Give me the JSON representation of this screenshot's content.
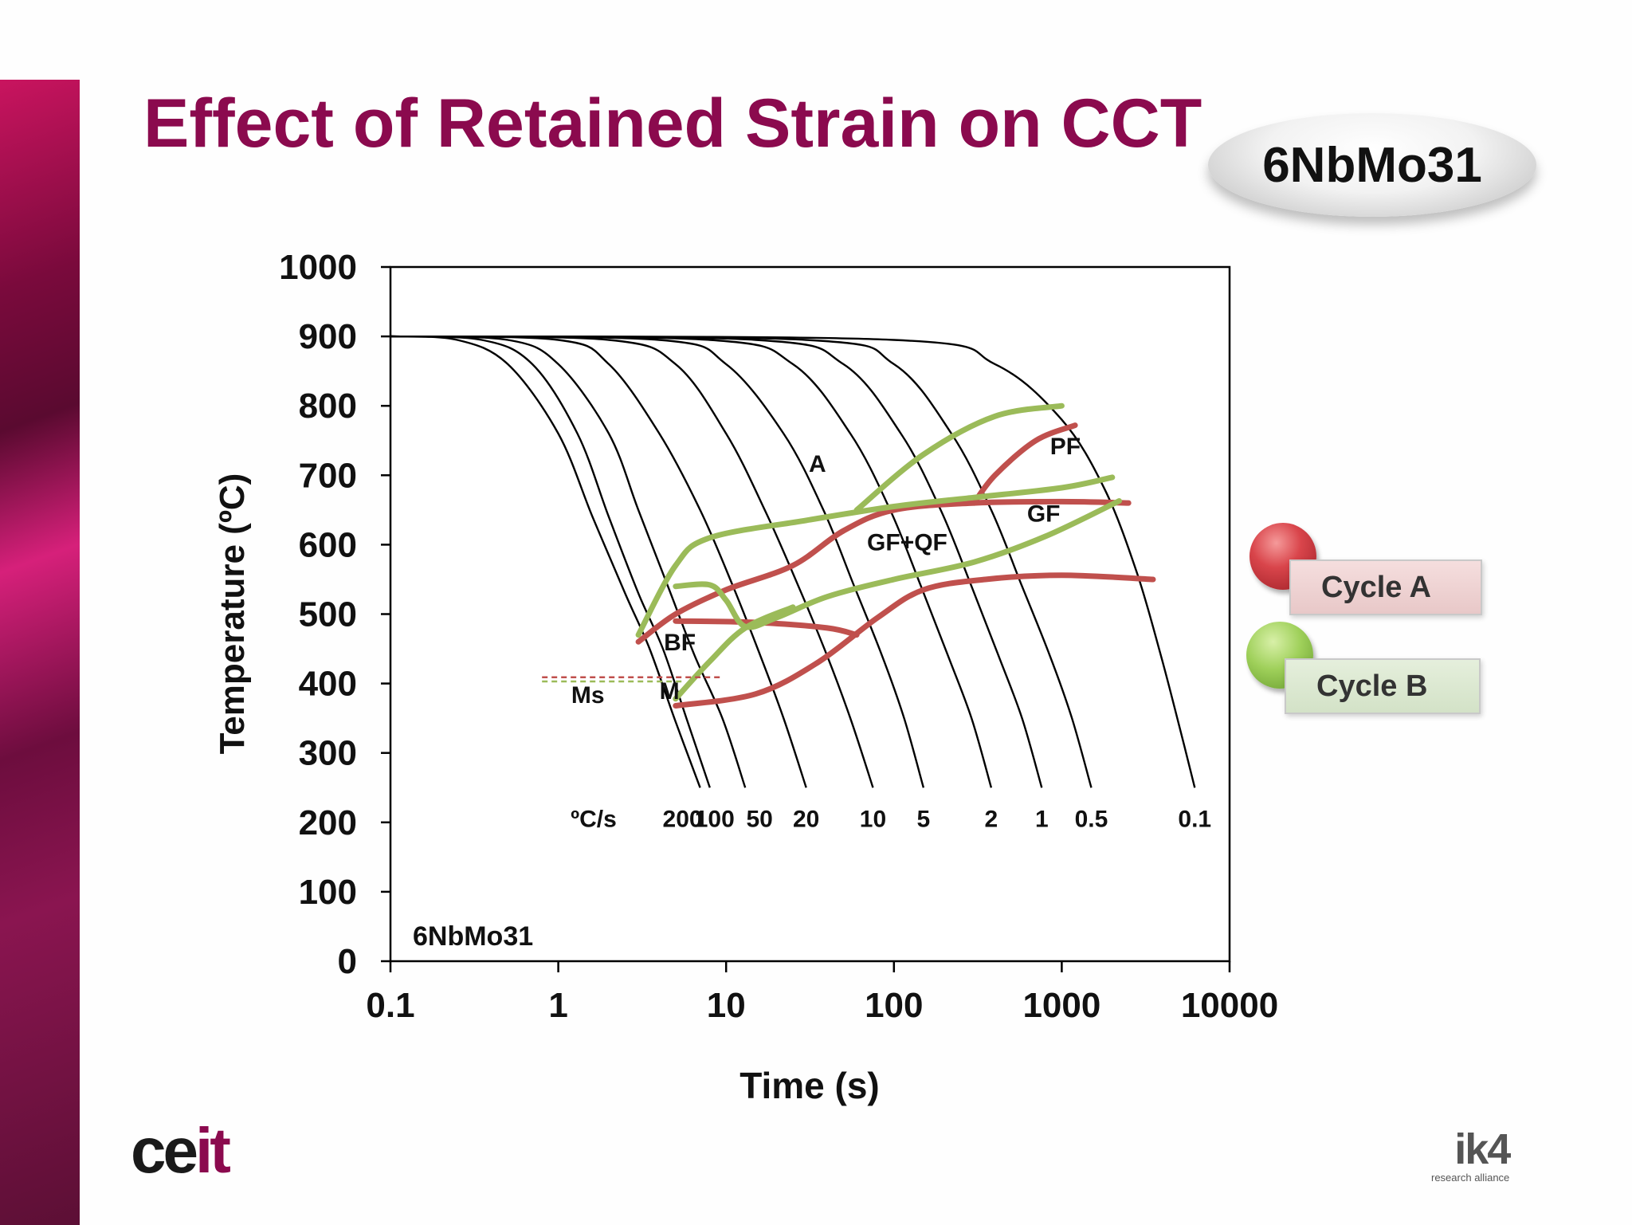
{
  "slide": {
    "title": "Effect of Retained Strain on CCT",
    "badge": "6NbMo31"
  },
  "colors": {
    "title": "#8b0a4e",
    "cycle_a": "#c0504d",
    "cycle_b": "#9bbb59",
    "cooling_curves": "#000000"
  },
  "legend": {
    "cycle_a": "Cycle A",
    "cycle_b": "Cycle B"
  },
  "logos": {
    "left_a": "ce",
    "left_b": "it",
    "right_main": "ik4",
    "right_sub": "research alliance"
  },
  "chart_data": {
    "type": "line",
    "xlabel": "Time (s)",
    "ylabel": "Temperature (ºC)",
    "x_scale": "log",
    "xlim": [
      0.1,
      10000
    ],
    "ylim": [
      0,
      1000
    ],
    "x_ticks": [
      "0.1",
      "1",
      "10",
      "100",
      "1000",
      "10000"
    ],
    "y_ticks": [
      "0",
      "100",
      "200",
      "300",
      "400",
      "500",
      "600",
      "700",
      "800",
      "900",
      "1000"
    ],
    "grid": false,
    "inner_label": "6NbMo31",
    "rate_unit_label": "ºC/s",
    "cooling_curves": [
      {
        "rate": "200",
        "points": [
          [
            0.1,
            900
          ],
          [
            0.25,
            895
          ],
          [
            0.5,
            860
          ],
          [
            1,
            760
          ],
          [
            1.6,
            640
          ],
          [
            2.5,
            530
          ],
          [
            3.5,
            450
          ],
          [
            5,
            345
          ],
          [
            7,
            250
          ]
        ]
      },
      {
        "rate": "100",
        "points": [
          [
            0.1,
            900
          ],
          [
            0.35,
            895
          ],
          [
            0.7,
            860
          ],
          [
            1.3,
            760
          ],
          [
            2,
            640
          ],
          [
            3,
            530
          ],
          [
            4.2,
            450
          ],
          [
            5.8,
            350
          ],
          [
            8,
            250
          ]
        ]
      },
      {
        "rate": "50",
        "points": [
          [
            0.1,
            900
          ],
          [
            0.5,
            895
          ],
          [
            1,
            860
          ],
          [
            2,
            760
          ],
          [
            3,
            650
          ],
          [
            4.5,
            540
          ],
          [
            6.5,
            440
          ],
          [
            9.5,
            350
          ],
          [
            13,
            250
          ]
        ]
      },
      {
        "rate": "20",
        "points": [
          [
            0.1,
            900
          ],
          [
            1,
            895
          ],
          [
            2,
            860
          ],
          [
            4,
            760
          ],
          [
            7,
            650
          ],
          [
            11,
            540
          ],
          [
            16,
            440
          ],
          [
            22,
            350
          ],
          [
            30,
            250
          ]
        ]
      },
      {
        "rate": "10",
        "points": [
          [
            0.1,
            900
          ],
          [
            2,
            895
          ],
          [
            5,
            860
          ],
          [
            10,
            760
          ],
          [
            17,
            650
          ],
          [
            27,
            540
          ],
          [
            40,
            440
          ],
          [
            55,
            350
          ],
          [
            75,
            250
          ]
        ]
      },
      {
        "rate": "5",
        "points": [
          [
            0.1,
            900
          ],
          [
            4,
            895
          ],
          [
            10,
            860
          ],
          [
            22,
            760
          ],
          [
            38,
            650
          ],
          [
            58,
            540
          ],
          [
            85,
            440
          ],
          [
            115,
            350
          ],
          [
            150,
            250
          ]
        ]
      },
      {
        "rate": "2",
        "points": [
          [
            0.1,
            900
          ],
          [
            8,
            895
          ],
          [
            25,
            860
          ],
          [
            55,
            760
          ],
          [
            95,
            650
          ],
          [
            145,
            540
          ],
          [
            210,
            440
          ],
          [
            290,
            350
          ],
          [
            380,
            250
          ]
        ]
      },
      {
        "rate": "1",
        "points": [
          [
            0.1,
            900
          ],
          [
            15,
            895
          ],
          [
            50,
            860
          ],
          [
            110,
            760
          ],
          [
            190,
            650
          ],
          [
            290,
            540
          ],
          [
            420,
            440
          ],
          [
            580,
            350
          ],
          [
            760,
            250
          ]
        ]
      },
      {
        "rate": "0.5",
        "points": [
          [
            0.1,
            900
          ],
          [
            30,
            895
          ],
          [
            100,
            860
          ],
          [
            220,
            760
          ],
          [
            380,
            650
          ],
          [
            580,
            540
          ],
          [
            850,
            440
          ],
          [
            1150,
            350
          ],
          [
            1500,
            250
          ]
        ]
      },
      {
        "rate": "0.1",
        "points": [
          [
            0.1,
            900
          ],
          [
            100,
            895
          ],
          [
            400,
            860
          ],
          [
            1000,
            780
          ],
          [
            1800,
            680
          ],
          [
            2800,
            560
          ],
          [
            3900,
            440
          ],
          [
            5000,
            340
          ],
          [
            6200,
            250
          ]
        ]
      }
    ],
    "rate_label_y": 198,
    "series": [
      {
        "name": "Cycle A",
        "lines": [
          [
            [
              3,
              460
            ],
            [
              5,
              500
            ],
            [
              10,
              535
            ],
            [
              25,
              570
            ],
            [
              50,
              620
            ],
            [
              100,
              650
            ],
            [
              300,
              660
            ],
            [
              1000,
              662
            ],
            [
              2500,
              660
            ]
          ],
          [
            [
              5,
              490
            ],
            [
              15,
              488
            ],
            [
              40,
              480
            ],
            [
              60,
              470
            ]
          ],
          [
            [
              300,
              660
            ],
            [
              400,
              700
            ],
            [
              700,
              750
            ],
            [
              1200,
              772
            ]
          ],
          [
            [
              5,
              368
            ],
            [
              15,
              385
            ],
            [
              35,
              430
            ],
            [
              80,
              495
            ],
            [
              150,
              535
            ],
            [
              350,
              550
            ],
            [
              1000,
              556
            ],
            [
              3500,
              550
            ]
          ]
        ]
      },
      {
        "name": "Cycle B",
        "lines": [
          [
            [
              3,
              470
            ],
            [
              5,
              570
            ],
            [
              8,
              610
            ],
            [
              30,
              635
            ],
            [
              100,
              655
            ],
            [
              300,
              668
            ],
            [
              1000,
              682
            ],
            [
              2000,
              697
            ]
          ],
          [
            [
              5,
              540
            ],
            [
              8,
              542
            ],
            [
              10,
              520
            ],
            [
              13,
              482
            ],
            [
              20,
              495
            ],
            [
              40,
              525
            ],
            [
              100,
              550
            ],
            [
              300,
              575
            ],
            [
              800,
              612
            ],
            [
              2200,
              663
            ]
          ],
          [
            [
              5,
              378
            ],
            [
              8,
              432
            ],
            [
              13,
              480
            ],
            [
              25,
              510
            ]
          ],
          [
            [
              60,
              650
            ],
            [
              150,
              730
            ],
            [
              400,
              785
            ],
            [
              1000,
              800
            ]
          ]
        ]
      }
    ],
    "ms_line": {
      "label": "Ms",
      "temperature": 405,
      "x_range": [
        0.8,
        16
      ]
    },
    "annotations": [
      {
        "text": "A",
        "x": 35,
        "y": 705
      },
      {
        "text": "PF",
        "x": 1050,
        "y": 730
      },
      {
        "text": "GF",
        "x": 780,
        "y": 633
      },
      {
        "text": "GF+QF",
        "x": 120,
        "y": 592
      },
      {
        "text": "BF",
        "x": 5.3,
        "y": 448
      },
      {
        "text": "Ms",
        "x": 1.5,
        "y": 372
      },
      {
        "text": "M",
        "x": 4.6,
        "y": 378
      }
    ]
  }
}
